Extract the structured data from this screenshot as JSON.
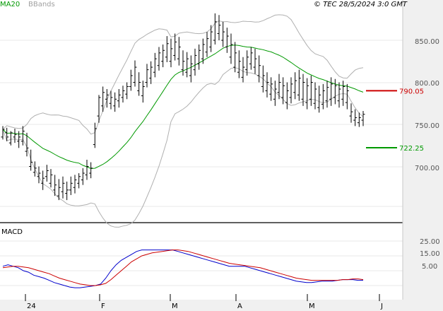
{
  "header": {
    "legend": [
      {
        "name": "MA20",
        "color": "#009900"
      },
      {
        "name": "BBands",
        "color": "#a0a0a0"
      }
    ],
    "copyright": "© TEC 28/5/2024 3:0 GMT"
  },
  "panes": {
    "price": {
      "y_ticks": [
        "850.00",
        "800.00",
        "750.00",
        "700.00"
      ],
      "levels": [
        {
          "label": "790.05",
          "value": 790.05,
          "color": "#cc0000"
        },
        {
          "label": "722.25",
          "value": 722.25,
          "color": "#009900"
        }
      ]
    },
    "macd": {
      "label": "MACD",
      "y_ticks": [
        "25.00",
        "15.00",
        "5.00"
      ]
    },
    "x_ticks": [
      "24",
      "F",
      "M",
      "A",
      "M",
      "J"
    ]
  },
  "chart_data": [
    {
      "type": "ohlc",
      "title": "",
      "ylim": [
        655,
        900
      ],
      "x_ticks": [
        "24",
        "F",
        "M",
        "A",
        "M",
        "J"
      ],
      "ohlc": [
        [
          735,
          748,
          732,
          744
        ],
        [
          740,
          746,
          730,
          735
        ],
        [
          728,
          742,
          725,
          740
        ],
        [
          735,
          745,
          728,
          738
        ],
        [
          730,
          742,
          722,
          735
        ],
        [
          730,
          748,
          725,
          742
        ],
        [
          718,
          740,
          712,
          722
        ],
        [
          700,
          720,
          695,
          705
        ],
        [
          693,
          706,
          688,
          698
        ],
        [
          688,
          700,
          680,
          692
        ],
        [
          680,
          695,
          672,
          686
        ],
        [
          688,
          702,
          682,
          695
        ],
        [
          680,
          697,
          675,
          690
        ],
        [
          672,
          690,
          665,
          678
        ],
        [
          665,
          685,
          660,
          675
        ],
        [
          670,
          688,
          662,
          680
        ],
        [
          668,
          682,
          660,
          672
        ],
        [
          672,
          688,
          666,
          680
        ],
        [
          675,
          690,
          668,
          684
        ],
        [
          680,
          692,
          674,
          688
        ],
        [
          684,
          698,
          678,
          692
        ],
        [
          690,
          708,
          684,
          700
        ],
        [
          692,
          705,
          686,
          698
        ],
        [
          726,
          752,
          722,
          745
        ],
        [
          760,
          785,
          752,
          782
        ],
        [
          772,
          795,
          765,
          788
        ],
        [
          780,
          792,
          770,
          785
        ],
        [
          775,
          790,
          768,
          782
        ],
        [
          772,
          788,
          765,
          780
        ],
        [
          778,
          792,
          770,
          785
        ],
        [
          782,
          796,
          776,
          790
        ],
        [
          786,
          800,
          780,
          795
        ],
        [
          795,
          815,
          790,
          808
        ],
        [
          800,
          826,
          795,
          818
        ],
        [
          790,
          812,
          784,
          800
        ],
        [
          784,
          802,
          776,
          795
        ],
        [
          800,
          822,
          794,
          815
        ],
        [
          805,
          825,
          798,
          818
        ],
        [
          812,
          835,
          806,
          828
        ],
        [
          820,
          842,
          814,
          835
        ],
        [
          825,
          845,
          818,
          838
        ],
        [
          830,
          855,
          824,
          846
        ],
        [
          825,
          852,
          818,
          840
        ],
        [
          832,
          858,
          826,
          848
        ],
        [
          828,
          854,
          820,
          842
        ],
        [
          815,
          838,
          808,
          825
        ],
        [
          812,
          836,
          806,
          828
        ],
        [
          808,
          832,
          800,
          822
        ],
        [
          815,
          840,
          808,
          832
        ],
        [
          822,
          845,
          815,
          838
        ],
        [
          828,
          852,
          822,
          845
        ],
        [
          836,
          860,
          830,
          852
        ],
        [
          842,
          868,
          836,
          860
        ],
        [
          850,
          882,
          845,
          872
        ],
        [
          858,
          880,
          850,
          868
        ],
        [
          850,
          872,
          842,
          860
        ],
        [
          842,
          865,
          835,
          855
        ],
        [
          830,
          858,
          822,
          845
        ],
        [
          818,
          848,
          812,
          835
        ],
        [
          812,
          838,
          805,
          825
        ],
        [
          806,
          830,
          800,
          818
        ],
        [
          815,
          838,
          808,
          830
        ],
        [
          822,
          842,
          815,
          835
        ],
        [
          818,
          840,
          810,
          828
        ],
        [
          808,
          832,
          800,
          820
        ],
        [
          795,
          820,
          788,
          808
        ],
        [
          790,
          812,
          782,
          800
        ],
        [
          786,
          806,
          778,
          798
        ],
        [
          780,
          802,
          772,
          792
        ],
        [
          788,
          810,
          780,
          800
        ],
        [
          782,
          806,
          774,
          796
        ],
        [
          776,
          800,
          768,
          790
        ],
        [
          782,
          806,
          775,
          798
        ],
        [
          788,
          812,
          780,
          802
        ],
        [
          785,
          815,
          778,
          805
        ],
        [
          780,
          810,
          772,
          800
        ],
        [
          776,
          805,
          768,
          796
        ],
        [
          780,
          808,
          772,
          800
        ],
        [
          775,
          800,
          768,
          792
        ],
        [
          770,
          796,
          764,
          785
        ],
        [
          774,
          798,
          768,
          790
        ],
        [
          778,
          802,
          770,
          794
        ],
        [
          780,
          806,
          772,
          798
        ],
        [
          782,
          804,
          774,
          796
        ],
        [
          778,
          800,
          770,
          792
        ],
        [
          780,
          802,
          772,
          795
        ],
        [
          776,
          798,
          768,
          790
        ],
        [
          760,
          775,
          752,
          765
        ],
        [
          755,
          768,
          748,
          758
        ],
        [
          752,
          764,
          747,
          758
        ],
        [
          755,
          766,
          748,
          762
        ]
      ]
    },
    {
      "type": "line",
      "title": "",
      "ylim": [
        0,
        30
      ],
      "series": [
        {
          "name": "",
          "color": "#0000cc",
          "values": [
            13,
            14,
            13,
            12,
            10,
            9,
            7,
            6,
            5,
            3.5,
            2,
            1,
            0,
            -1,
            -1.5,
            -1.5,
            -1,
            -0.5,
            0,
            1,
            5,
            10,
            14,
            17,
            19,
            21,
            23,
            24,
            24,
            24,
            24,
            24,
            24,
            24,
            23,
            22,
            21,
            20,
            19,
            18,
            17,
            16,
            15,
            14,
            13,
            13,
            13,
            13,
            12,
            11,
            10,
            9,
            8,
            7,
            6,
            5,
            4,
            3,
            2.5,
            2,
            2,
            2.5,
            3,
            3,
            3,
            3.5,
            4,
            4,
            4,
            3.5,
            3.5
          ]
        },
        {
          "name": "",
          "color": "#cc0000",
          "values": [
            12,
            12.5,
            13,
            13,
            12.5,
            12,
            11,
            10,
            9,
            8,
            6.5,
            5,
            4,
            3,
            2,
            1,
            0.5,
            0,
            0,
            0.5,
            1.5,
            4,
            7,
            10,
            13,
            16,
            18,
            20,
            21,
            22,
            22.5,
            23,
            23.5,
            24,
            24,
            23.5,
            23,
            22,
            21,
            20,
            19,
            18,
            17,
            16,
            15,
            14.5,
            14,
            13.5,
            13,
            12.5,
            12,
            11,
            10,
            9,
            8,
            7,
            6,
            5,
            4.5,
            4,
            3.5,
            3.5,
            3.5,
            3.5,
            3.5,
            3.5,
            4,
            4,
            4.5,
            4.5,
            4
          ]
        }
      ]
    }
  ]
}
